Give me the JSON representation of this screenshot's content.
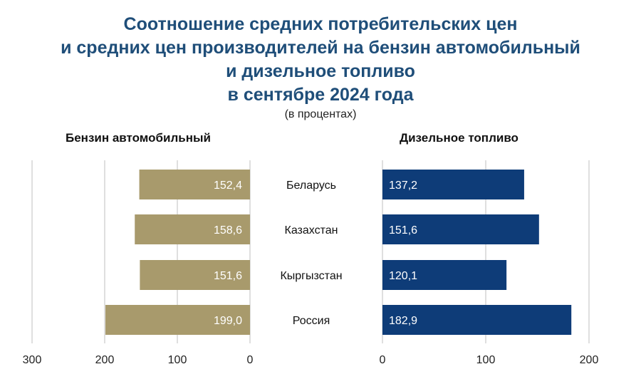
{
  "header": {
    "title_lines": [
      "Соотношение средних потребительских цен",
      "и средних цен производителей на бензин автомобильный",
      "и дизельное топливо",
      "в сентябре 2024 года"
    ],
    "subtitle": "(в процентах)"
  },
  "chart_data": [
    {
      "type": "bar",
      "orientation": "horizontal",
      "direction": "right-to-left",
      "title": "Бензин автомобильный",
      "categories": [
        "Беларусь",
        "Казахстан",
        "Кыргызстан",
        "Россия"
      ],
      "values": [
        152.4,
        158.6,
        151.6,
        199.0
      ],
      "value_labels": [
        "152,4",
        "158,6",
        "151,6",
        "199,0"
      ],
      "xlim": [
        0,
        300
      ],
      "ticks": [
        300,
        200,
        100,
        0
      ],
      "tick_labels": [
        "300",
        "200",
        "100",
        "0"
      ],
      "grid": true,
      "color": "#a89a6c"
    },
    {
      "type": "bar",
      "orientation": "horizontal",
      "direction": "left-to-right",
      "title": "Дизельное топливо",
      "categories": [
        "Беларусь",
        "Казахстан",
        "Кыргызстан",
        "Россия"
      ],
      "values": [
        137.2,
        151.6,
        120.1,
        182.9
      ],
      "value_labels": [
        "137,2",
        "151,6",
        "120,1",
        "182,9"
      ],
      "xlim": [
        0,
        200
      ],
      "ticks": [
        0,
        100,
        200
      ],
      "tick_labels": [
        "0",
        "100",
        "200"
      ],
      "grid": true,
      "color": "#0e3c78"
    }
  ],
  "center_labels": [
    "Беларусь",
    "Казахстан",
    "Кыргызстан",
    "Россия"
  ]
}
